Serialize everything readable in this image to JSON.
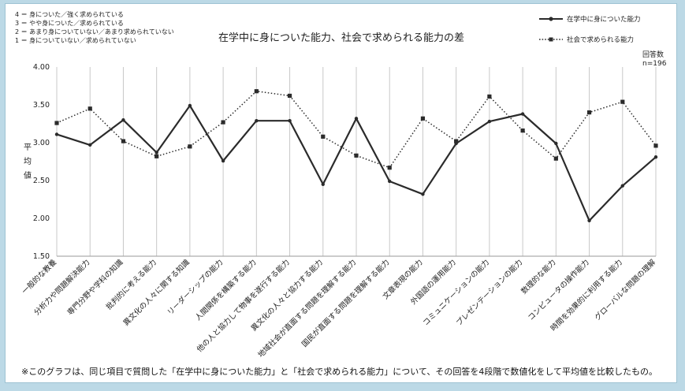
{
  "scale_notes": [
    "4 ＝ 身についた／強く求められている",
    "3 ＝ やや身についた／求められている",
    "2 ＝ あまり身についていない／あまり求められていない",
    "1 ＝ 身についていない／求められていない"
  ],
  "respondents": {
    "label": "回答数",
    "value": "n=196"
  },
  "footnote": "※このグラフは、同じ項目で質問した「在学中に身についた能力」と「社会で求められる能力」について、その回答を4段階で数値化をして平均値を比較したもの。",
  "colors": {
    "background": "#bcd9e6",
    "series": "#2b2b2b",
    "gridline": "#c8c8c8"
  },
  "chart_data": {
    "type": "line",
    "title": "在学中に身についた能力、社会で求められる能力の差",
    "ylabel": "平均値",
    "ylim": [
      1.5,
      4.0
    ],
    "yticks": [
      "1.50",
      "2.00",
      "2.50",
      "3.00",
      "3.50",
      "4.00"
    ],
    "legend_position": "top-right",
    "categories": [
      "一般的な教養",
      "分析力や問題解決能力",
      "専門分野や学科の知識",
      "批判的に考える能力",
      "異文化の人々に関する知識",
      "リーダーシップの能力",
      "人間関係を構築する能力",
      "他の人と協力して物事を遂行する能力",
      "異文化の人々と協力する能力",
      "地域社会が直面する問題を理解する能力",
      "国民が直面する問題を理解する能力",
      "文章表現の能力",
      "外国語の運用能力",
      "コミュニケーションの能力",
      "プレゼンテーションの能力",
      "数理的な能力",
      "コンピュータの操作能力",
      "時間を効果的に利用する能力",
      "グローバルな問題の理解"
    ],
    "series": [
      {
        "name": "在学中に身についた能力",
        "style": "solid",
        "values": [
          3.11,
          2.97,
          3.3,
          2.87,
          3.49,
          2.76,
          3.29,
          3.29,
          2.45,
          3.32,
          2.49,
          2.32,
          2.99,
          3.28,
          3.38,
          2.99,
          1.97,
          2.43,
          2.81
        ]
      },
      {
        "name": "社会で求められる能力",
        "style": "dotted",
        "values": [
          3.26,
          3.45,
          3.02,
          2.82,
          2.95,
          3.27,
          3.68,
          3.62,
          3.08,
          2.83,
          2.67,
          3.32,
          3.02,
          3.61,
          3.16,
          2.79,
          3.4,
          3.54,
          2.96
        ]
      }
    ]
  }
}
